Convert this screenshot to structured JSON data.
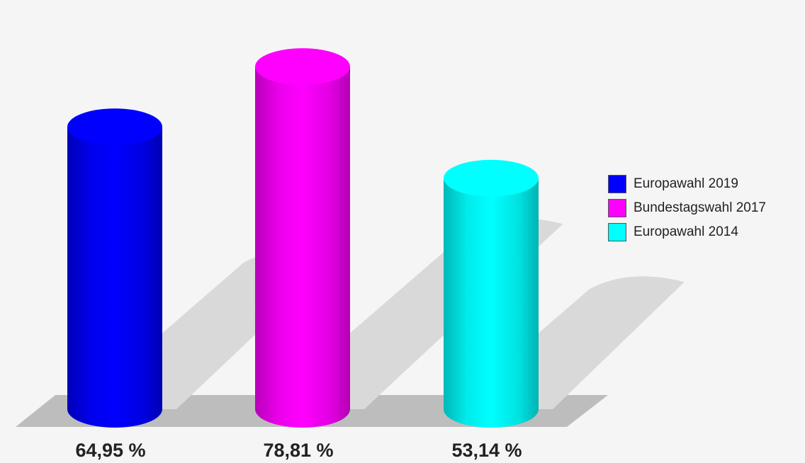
{
  "chart_data": {
    "type": "bar",
    "style": "3d-cylinder",
    "categories": [
      "Europawahl 2019",
      "Bundestagswahl 2017",
      "Europawahl 2014"
    ],
    "values": [
      64.95,
      78.81,
      53.14
    ],
    "value_labels": [
      "64,95 %",
      "78,81 %",
      "53,14 %"
    ],
    "colors": [
      "#0000ff",
      "#ff00ff",
      "#00ffff"
    ],
    "legend": {
      "placement": "right",
      "entries": [
        {
          "label": "Europawahl 2019",
          "color": "#0000ff"
        },
        {
          "label": "Bundestagswahl 2017",
          "color": "#ff00ff"
        },
        {
          "label": "Europawahl 2014",
          "color": "#00ffff"
        }
      ]
    },
    "title": "",
    "xlabel": "",
    "ylabel": "",
    "ylim": [
      0,
      100
    ],
    "grid": false
  }
}
